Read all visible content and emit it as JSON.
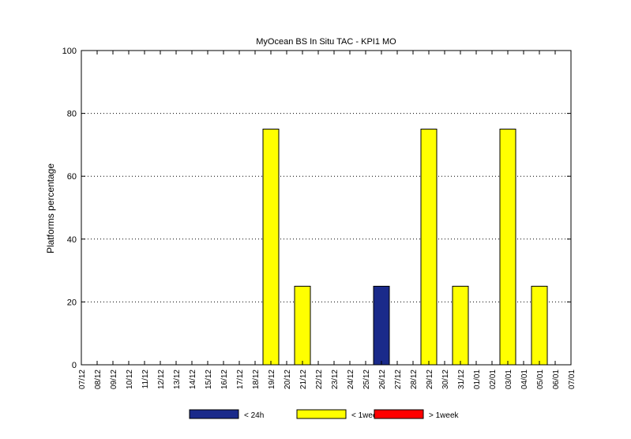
{
  "chart_data": {
    "type": "bar",
    "title": "MyOcean  BS In Situ TAC - KPI1  MO",
    "xlabel": "",
    "ylabel": "Platforms percentage",
    "ylim": [
      0,
      100
    ],
    "yticks": [
      0,
      20,
      40,
      60,
      80,
      100
    ],
    "grid": true,
    "legend_position": "bottom",
    "stacked": true,
    "categories": [
      "07/12",
      "08/12",
      "09/12",
      "10/12",
      "11/12",
      "12/12",
      "13/12",
      "14/12",
      "15/12",
      "16/12",
      "17/12",
      "18/12",
      "19/12",
      "20/12",
      "21/12",
      "22/12",
      "23/12",
      "24/12",
      "25/12",
      "26/12",
      "27/12",
      "28/12",
      "29/12",
      "30/12",
      "31/12",
      "01/01",
      "02/01",
      "03/01",
      "04/01",
      "05/01",
      "06/01",
      "07/01"
    ],
    "series": [
      {
        "name": "< 24h",
        "color": "#1a2a8a",
        "values": [
          0,
          0,
          0,
          0,
          0,
          0,
          0,
          0,
          0,
          0,
          0,
          0,
          0,
          0,
          0,
          0,
          0,
          0,
          0,
          25,
          0,
          0,
          0,
          0,
          0,
          0,
          0,
          0,
          0,
          0,
          0,
          0
        ]
      },
      {
        "name": "< 1week",
        "color": "#ffff00",
        "values": [
          0,
          0,
          0,
          0,
          0,
          0,
          0,
          0,
          0,
          0,
          0,
          0,
          75,
          0,
          25,
          0,
          0,
          0,
          0,
          0,
          0,
          0,
          75,
          0,
          25,
          0,
          0,
          75,
          0,
          25,
          0,
          0
        ]
      },
      {
        "name": "> 1week",
        "color": "#ff0000",
        "values": [
          0,
          0,
          0,
          0,
          0,
          0,
          0,
          0,
          0,
          0,
          0,
          0,
          0,
          0,
          0,
          0,
          0,
          0,
          0,
          0,
          0,
          0,
          0,
          0,
          0,
          0,
          0,
          0,
          0,
          0,
          0,
          0
        ]
      }
    ]
  }
}
